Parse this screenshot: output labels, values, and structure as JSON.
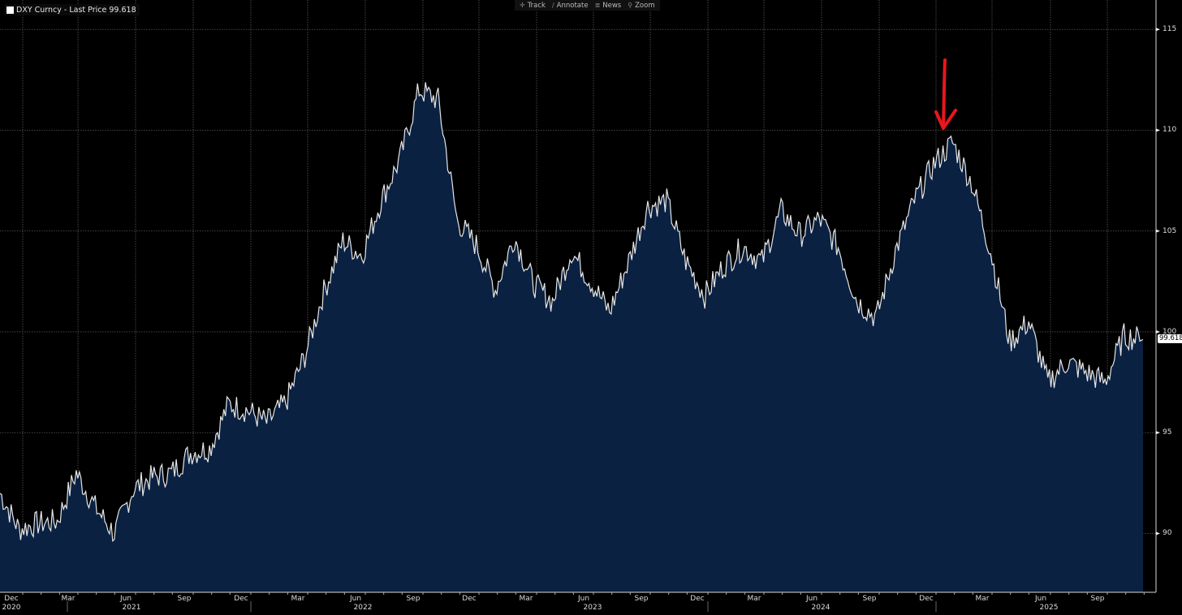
{
  "legend": {
    "label": "DXY Curncy - Last Price 99.618",
    "color": "#ffffff"
  },
  "toolbar": {
    "items": [
      {
        "icon": "crosshair-icon",
        "glyph": "✛",
        "label": "Track"
      },
      {
        "icon": "pencil-icon",
        "glyph": "∕",
        "label": "Annotate"
      },
      {
        "icon": "news-icon",
        "glyph": "≣",
        "label": "News"
      },
      {
        "icon": "magnifier-icon",
        "glyph": "⚲",
        "label": "Zoom"
      }
    ]
  },
  "colors": {
    "background": "#000000",
    "area_fill": "#0a2142",
    "line": "#e6e6e6",
    "grid": "#5a5a5a",
    "annotation_arrow": "#e8171c"
  },
  "last_price_label": "99.618",
  "chart_data": {
    "type": "area",
    "title": "DXY Curncy - Last Price 99.618",
    "xlabel": "",
    "ylabel": "",
    "ylim": [
      87,
      115.5
    ],
    "yticks": [
      90,
      95,
      100,
      105,
      110,
      115
    ],
    "grid": true,
    "legend_position": "top-left",
    "x_tick_labels": [
      {
        "label": "Dec",
        "year": "2020"
      },
      {
        "label": "Mar"
      },
      {
        "label": "Jun",
        "year": "2021"
      },
      {
        "label": "Sep"
      },
      {
        "label": "Dec"
      },
      {
        "label": "Mar"
      },
      {
        "label": "Jun",
        "year": "2022"
      },
      {
        "label": "Sep"
      },
      {
        "label": "Dec"
      },
      {
        "label": "Mar"
      },
      {
        "label": "Jun",
        "year": "2023"
      },
      {
        "label": "Sep"
      },
      {
        "label": "Dec"
      },
      {
        "label": "Mar"
      },
      {
        "label": "Jun",
        "year": "2024"
      },
      {
        "label": "Sep"
      },
      {
        "label": "Dec"
      },
      {
        "label": "Mar"
      },
      {
        "label": "Jun",
        "year": "2025"
      },
      {
        "label": "Sep"
      }
    ],
    "annotations": [
      {
        "type": "hand-drawn arrow",
        "color": "#e8171c",
        "points_to": "Jan 2025 peak ~110"
      }
    ],
    "series": [
      {
        "name": "DXY Last Price",
        "x": [
          "2020-11",
          "2020-12",
          "2021-01",
          "2021-02",
          "2021-03",
          "2021-04",
          "2021-05",
          "2021-06",
          "2021-07",
          "2021-08",
          "2021-09",
          "2021-10",
          "2021-11",
          "2021-12",
          "2022-01",
          "2022-02",
          "2022-03",
          "2022-04",
          "2022-05",
          "2022-06",
          "2022-07",
          "2022-08",
          "2022-09",
          "2022-10",
          "2022-11",
          "2022-12",
          "2023-01",
          "2023-02",
          "2023-03",
          "2023-04",
          "2023-05",
          "2023-06",
          "2023-07",
          "2023-08",
          "2023-09",
          "2023-10",
          "2023-11",
          "2023-12",
          "2024-01",
          "2024-02",
          "2024-03",
          "2024-04",
          "2024-05",
          "2024-06",
          "2024-07",
          "2024-08",
          "2024-09",
          "2024-10",
          "2024-11",
          "2024-12",
          "2025-01",
          "2025-02",
          "2025-03",
          "2025-04",
          "2025-05",
          "2025-06",
          "2025-07",
          "2025-08",
          "2025-09",
          "2025-10",
          "2025-11"
        ],
        "values": [
          92.0,
          90.2,
          90.5,
          90.6,
          93.0,
          91.3,
          90.0,
          92.2,
          92.8,
          93.0,
          94.0,
          94.2,
          96.4,
          96.1,
          95.5,
          96.5,
          98.8,
          102.0,
          104.5,
          103.8,
          106.5,
          108.6,
          112.0,
          111.5,
          105.5,
          104.3,
          102.1,
          104.7,
          102.4,
          101.5,
          104.0,
          102.5,
          101.0,
          103.5,
          106.2,
          106.5,
          103.5,
          101.8,
          103.3,
          104.2,
          103.5,
          106.0,
          104.8,
          105.6,
          104.2,
          101.5,
          100.7,
          104.0,
          106.5,
          108.3,
          109.4,
          107.4,
          104.0,
          99.5,
          100.5,
          97.5,
          98.5,
          98.0,
          97.5,
          99.8,
          99.618
        ]
      }
    ]
  },
  "y_axis_labels": [
    "115",
    "110",
    "105",
    "100",
    "95",
    "90"
  ],
  "x_axis_months": [
    "Dec",
    "Mar",
    "Jun",
    "Sep",
    "Dec",
    "Mar",
    "Jun",
    "Sep",
    "Dec",
    "Mar",
    "Jun",
    "Sep",
    "Dec",
    "Mar",
    "Jun",
    "Sep",
    "Dec",
    "Mar",
    "Jun",
    "Sep"
  ],
  "x_axis_years": [
    "2020",
    "2021",
    "2022",
    "2023",
    "2024",
    "2025"
  ]
}
